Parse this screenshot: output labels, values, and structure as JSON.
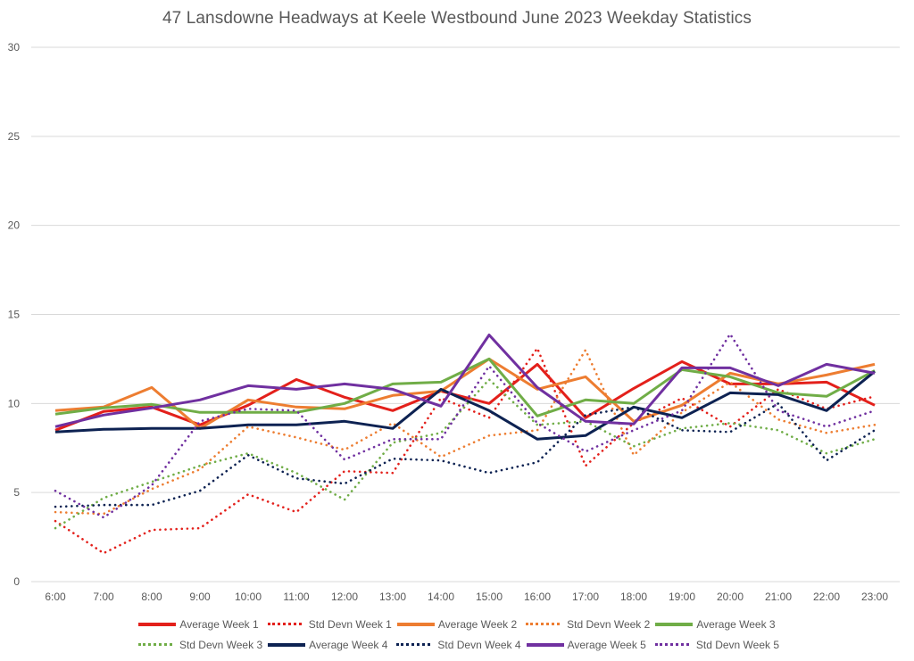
{
  "chart_data": {
    "type": "line",
    "title": "47 Lansdowne Headways at Keele Westbound June 2023 Weekday Statistics",
    "xlabel": "",
    "ylabel": "",
    "ylim": [
      0,
      30
    ],
    "yticks": [
      0,
      5,
      10,
      15,
      20,
      25,
      30
    ],
    "grid": true,
    "legend_position": "bottom",
    "categories": [
      "6:00",
      "7:00",
      "8:00",
      "9:00",
      "10:00",
      "11:00",
      "12:00",
      "13:00",
      "14:00",
      "15:00",
      "16:00",
      "17:00",
      "18:00",
      "19:00",
      "20:00",
      "21:00",
      "22:00",
      "23:00"
    ],
    "series": [
      {
        "name": "Average Week 1",
        "color": "#E3201B",
        "style": "solid",
        "values": [
          8.5,
          9.55,
          9.8,
          8.8,
          9.9,
          11.35,
          10.35,
          9.6,
          10.7,
          10.0,
          12.2,
          9.2,
          10.85,
          12.35,
          11.1,
          11.1,
          11.2,
          9.9
        ]
      },
      {
        "name": "Std Devn Week 1",
        "color": "#E3201B",
        "style": "dotted",
        "values": [
          3.4,
          1.6,
          2.9,
          3.0,
          4.9,
          3.9,
          6.2,
          6.1,
          10.3,
          9.2,
          13.1,
          6.5,
          8.9,
          10.3,
          8.7,
          10.8,
          9.7,
          10.4
        ]
      },
      {
        "name": "Average Week 2",
        "color": "#ED7D31",
        "style": "solid",
        "values": [
          9.6,
          9.8,
          10.9,
          8.6,
          10.2,
          9.8,
          9.7,
          10.45,
          10.7,
          12.5,
          10.8,
          11.5,
          9.0,
          9.9,
          11.7,
          11.1,
          11.6,
          12.2
        ]
      },
      {
        "name": "Std Devn Week 2",
        "color": "#ED7D31",
        "style": "dotted",
        "values": [
          3.9,
          3.8,
          5.2,
          6.3,
          8.7,
          8.1,
          7.4,
          8.9,
          7.0,
          8.2,
          8.5,
          13.0,
          7.1,
          9.5,
          11.2,
          9.1,
          8.35,
          8.8
        ]
      },
      {
        "name": "Average Week 3",
        "color": "#70AD47",
        "style": "solid",
        "values": [
          9.4,
          9.75,
          9.95,
          9.5,
          9.5,
          9.5,
          10.0,
          11.1,
          11.2,
          12.5,
          9.3,
          10.2,
          10.0,
          11.9,
          11.5,
          10.6,
          10.4,
          11.85
        ]
      },
      {
        "name": "Std Devn Week 3",
        "color": "#70AD47",
        "style": "dotted",
        "values": [
          3.0,
          4.7,
          5.6,
          6.5,
          7.2,
          6.1,
          4.6,
          7.8,
          8.35,
          11.35,
          8.8,
          9.0,
          7.6,
          8.6,
          8.9,
          8.5,
          7.2,
          8.0
        ]
      },
      {
        "name": "Average Week 4",
        "color": "#0D2252",
        "style": "solid",
        "values": [
          8.4,
          8.55,
          8.6,
          8.6,
          8.8,
          8.8,
          9.0,
          8.6,
          10.8,
          9.6,
          8.0,
          8.2,
          9.8,
          9.2,
          10.6,
          10.5,
          9.6,
          11.8
        ]
      },
      {
        "name": "Std Devn Week 4",
        "color": "#0D2252",
        "style": "dotted",
        "values": [
          4.2,
          4.3,
          4.3,
          5.1,
          7.1,
          5.8,
          5.5,
          6.9,
          6.8,
          6.1,
          6.7,
          9.35,
          9.8,
          8.5,
          8.4,
          10.0,
          6.8,
          8.5
        ]
      },
      {
        "name": "Average Week 5",
        "color": "#7030A0",
        "style": "solid",
        "values": [
          8.7,
          9.35,
          9.75,
          10.2,
          11.0,
          10.8,
          11.1,
          10.8,
          9.85,
          13.85,
          10.9,
          9.0,
          8.85,
          12.0,
          12.0,
          11.0,
          12.2,
          11.7
        ]
      },
      {
        "name": "Std Devn Week 5",
        "color": "#7030A0",
        "style": "dotted",
        "values": [
          5.1,
          3.6,
          5.4,
          9.0,
          9.7,
          9.6,
          6.85,
          8.0,
          8.0,
          12.1,
          8.9,
          7.3,
          8.5,
          9.6,
          13.9,
          9.6,
          8.7,
          9.6
        ]
      }
    ]
  },
  "legend": {
    "rows": [
      [
        0,
        1,
        2,
        3,
        4
      ],
      [
        5,
        6,
        7,
        8,
        9
      ]
    ]
  }
}
